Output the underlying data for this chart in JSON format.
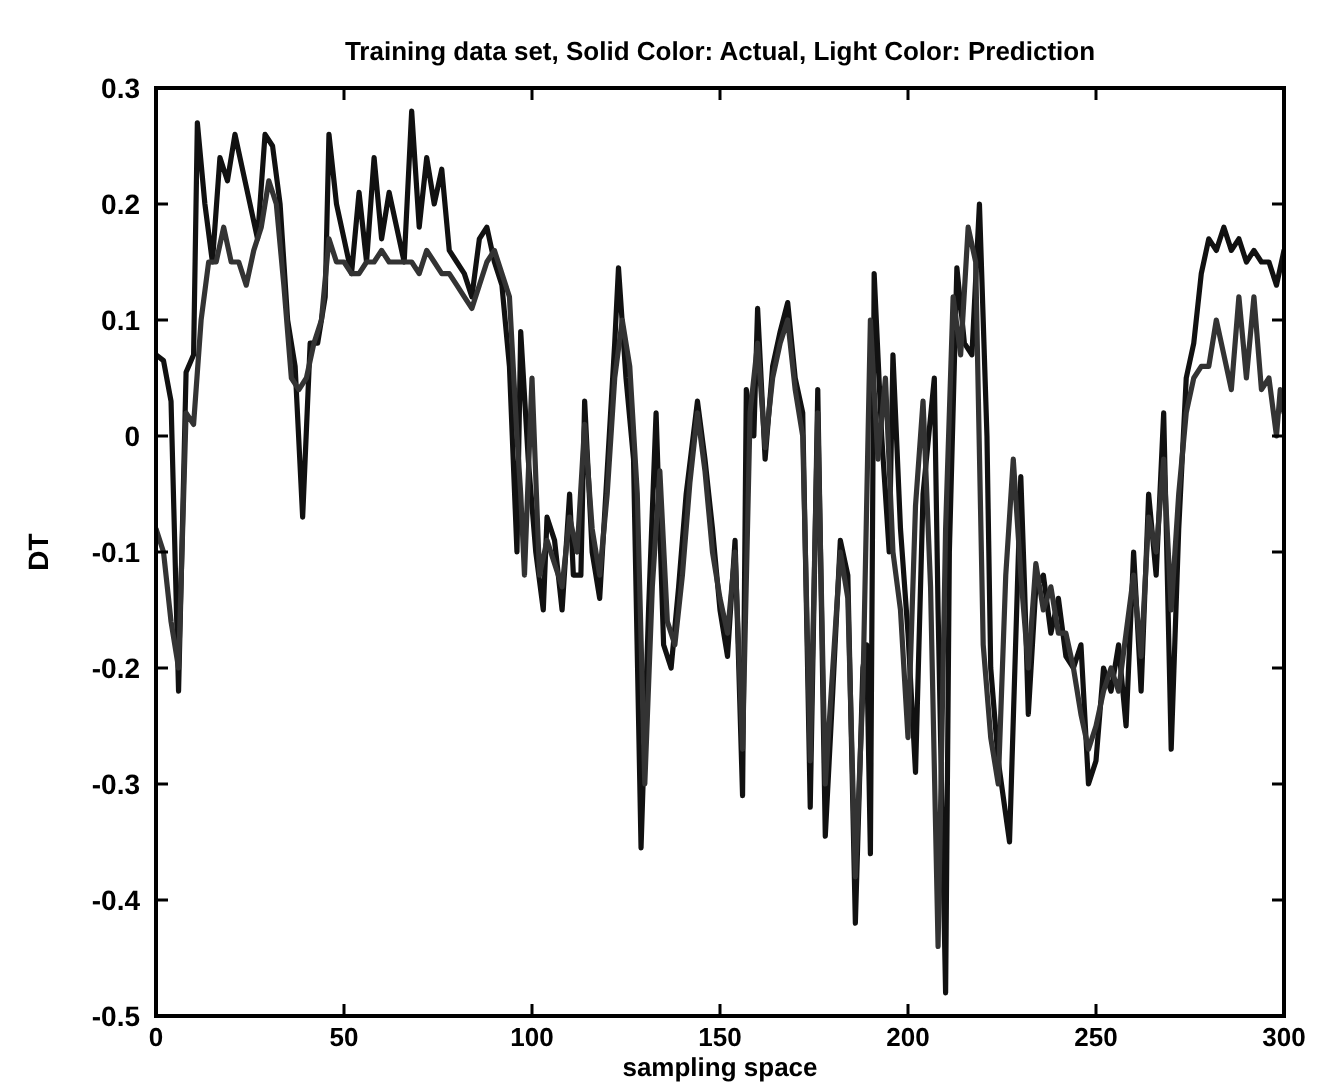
{
  "chart_data": {
    "type": "line",
    "title": "Training data set, Solid Color: Actual, Light Color: Prediction",
    "xlabel": "sampling space",
    "ylabel": "DT",
    "xlim": [
      0,
      300
    ],
    "xticks": [
      0,
      50,
      100,
      150,
      200,
      250,
      300
    ],
    "ylim": [
      -0.5,
      0.3
    ],
    "yticks": [
      -0.5,
      -0.4,
      -0.3,
      -0.2,
      -0.1,
      0,
      0.1,
      0.2,
      0.3
    ],
    "series": [
      {
        "color": "#111111",
        "x": [
          0,
          2,
          4,
          6,
          8,
          10,
          11,
          13,
          15,
          17,
          19,
          21,
          23,
          25,
          27,
          29,
          31,
          33,
          35,
          37,
          39,
          41,
          43,
          45,
          46,
          48,
          50,
          52,
          54,
          56,
          58,
          60,
          62,
          64,
          66,
          68,
          70,
          72,
          74,
          76,
          78,
          80,
          82,
          84,
          86,
          88,
          90,
          92,
          94,
          96,
          97,
          99,
          101,
          103,
          104,
          106,
          108,
          110,
          111,
          113,
          114,
          116,
          118,
          120,
          122,
          123,
          125,
          127,
          129,
          131,
          133,
          135,
          137,
          139,
          141,
          144,
          146,
          148,
          150,
          152,
          154,
          156,
          157,
          159,
          160,
          162,
          164,
          166,
          168,
          170,
          172,
          174,
          176,
          178,
          180,
          182,
          184,
          186,
          188,
          189,
          190,
          191,
          193,
          195,
          196,
          198,
          200,
          202,
          204,
          207,
          208,
          210,
          211,
          213,
          215,
          217,
          219,
          221,
          222,
          224,
          227,
          230,
          231,
          232,
          234,
          236,
          238,
          240,
          242,
          244,
          246,
          248,
          250,
          252,
          254,
          256,
          258,
          260,
          262,
          264,
          266,
          268,
          270,
          272,
          274,
          276,
          278,
          280,
          282,
          284,
          286,
          288,
          290,
          292,
          294,
          296,
          298,
          300
        ],
        "values": [
          0.07,
          0.065,
          0.03,
          -0.22,
          0.055,
          0.07,
          0.27,
          0.2,
          0.15,
          0.24,
          0.22,
          0.26,
          0.23,
          0.2,
          0.17,
          0.26,
          0.25,
          0.2,
          0.1,
          0.06,
          -0.07,
          0.08,
          0.08,
          0.12,
          0.26,
          0.2,
          0.17,
          0.14,
          0.21,
          0.15,
          0.24,
          0.17,
          0.21,
          0.18,
          0.15,
          0.28,
          0.18,
          0.24,
          0.2,
          0.23,
          0.16,
          0.15,
          0.14,
          0.12,
          0.17,
          0.18,
          0.15,
          0.13,
          0.06,
          -0.1,
          0.09,
          -0.02,
          -0.1,
          -0.15,
          -0.07,
          -0.09,
          -0.15,
          -0.05,
          -0.12,
          -0.12,
          0.03,
          -0.1,
          -0.14,
          -0.03,
          0.08,
          0.145,
          0.05,
          -0.02,
          -0.355,
          -0.15,
          0.02,
          -0.18,
          -0.2,
          -0.13,
          -0.05,
          0.03,
          -0.02,
          -0.08,
          -0.15,
          -0.19,
          -0.09,
          -0.31,
          0.04,
          0,
          0.11,
          -0.02,
          0.06,
          0.09,
          0.115,
          0.05,
          0.02,
          -0.32,
          0.04,
          -0.345,
          -0.22,
          -0.09,
          -0.12,
          -0.42,
          -0.2,
          -0.18,
          -0.36,
          0.14,
          0,
          -0.1,
          0.07,
          -0.08,
          -0.17,
          -0.29,
          -0.05,
          0.05,
          -0.15,
          -0.48,
          -0.1,
          0.145,
          0.08,
          0.07,
          0.2,
          0,
          -0.2,
          -0.28,
          -0.35,
          -0.035,
          -0.13,
          -0.24,
          -0.13,
          -0.12,
          -0.17,
          -0.14,
          -0.19,
          -0.2,
          -0.18,
          -0.3,
          -0.28,
          -0.2,
          -0.22,
          -0.18,
          -0.25,
          -0.1,
          -0.22,
          -0.05,
          -0.12,
          0.02,
          -0.27,
          -0.08,
          0.05,
          0.08,
          0.14,
          0.17,
          0.16,
          0.18,
          0.16,
          0.17,
          0.15,
          0.16,
          0.15,
          0.15,
          0.13,
          0.16
        ]
      },
      {
        "color": "#333333",
        "x": [
          0,
          2,
          4,
          6,
          8,
          10,
          12,
          14,
          16,
          18,
          20,
          22,
          24,
          26,
          28,
          30,
          32,
          34,
          36,
          38,
          40,
          42,
          44,
          46,
          48,
          50,
          52,
          54,
          56,
          58,
          60,
          62,
          64,
          66,
          68,
          70,
          72,
          74,
          76,
          78,
          80,
          82,
          84,
          86,
          88,
          90,
          92,
          94,
          96,
          97,
          98,
          100,
          102,
          104,
          106,
          108,
          110,
          112,
          114,
          116,
          118,
          120,
          122,
          124,
          126,
          128,
          130,
          132,
          134,
          136,
          138,
          140,
          142,
          144,
          146,
          148,
          150,
          152,
          154,
          156,
          158,
          160,
          162,
          164,
          166,
          168,
          170,
          172,
          174,
          176,
          178,
          180,
          182,
          184,
          186,
          188,
          190,
          192,
          194,
          196,
          198,
          200,
          202,
          204,
          206,
          208,
          210,
          212,
          214,
          216,
          218,
          220,
          222,
          224,
          226,
          228,
          230,
          232,
          234,
          236,
          238,
          240,
          242,
          244,
          246,
          248,
          250,
          252,
          254,
          256,
          258,
          260,
          262,
          264,
          266,
          268,
          270,
          272,
          274,
          276,
          278,
          280,
          282,
          284,
          286,
          288,
          290,
          292,
          294,
          296,
          298,
          299,
          300
        ],
        "values": [
          -0.08,
          -0.1,
          -0.16,
          -0.2,
          0.02,
          0.01,
          0.1,
          0.15,
          0.15,
          0.18,
          0.15,
          0.15,
          0.13,
          0.16,
          0.18,
          0.22,
          0.2,
          0.13,
          0.05,
          0.04,
          0.05,
          0.08,
          0.1,
          0.17,
          0.15,
          0.15,
          0.14,
          0.14,
          0.15,
          0.15,
          0.16,
          0.15,
          0.15,
          0.15,
          0.15,
          0.14,
          0.16,
          0.15,
          0.14,
          0.14,
          0.13,
          0.12,
          0.11,
          0.13,
          0.15,
          0.16,
          0.14,
          0.12,
          0,
          -0.05,
          -0.12,
          0.05,
          -0.12,
          -0.09,
          -0.11,
          -0.13,
          -0.07,
          -0.1,
          0.01,
          -0.08,
          -0.12,
          -0.05,
          0.05,
          0.1,
          0.06,
          -0.05,
          -0.3,
          -0.13,
          -0.03,
          -0.16,
          -0.18,
          -0.12,
          -0.04,
          0.02,
          -0.03,
          -0.1,
          -0.14,
          -0.17,
          -0.1,
          -0.27,
          0.02,
          0.08,
          -0.01,
          0.05,
          0.08,
          0.1,
          0.04,
          0.0,
          -0.28,
          0.02,
          -0.3,
          -0.2,
          -0.1,
          -0.14,
          -0.38,
          -0.22,
          0.1,
          -0.02,
          0.05,
          -0.1,
          -0.15,
          -0.26,
          -0.06,
          0.03,
          -0.13,
          -0.44,
          -0.08,
          0.12,
          0.07,
          0.18,
          0.15,
          -0.18,
          -0.26,
          -0.3,
          -0.12,
          -0.02,
          -0.12,
          -0.2,
          -0.11,
          -0.15,
          -0.13,
          -0.17,
          -0.17,
          -0.2,
          -0.24,
          -0.27,
          -0.25,
          -0.22,
          -0.2,
          -0.22,
          -0.17,
          -0.12,
          -0.19,
          -0.07,
          -0.1,
          -0.02,
          -0.15,
          -0.05,
          0.02,
          0.05,
          0.06,
          0.06,
          0.1,
          0.07,
          0.04,
          0.12,
          0.05,
          0.12,
          0.04,
          0.05,
          0,
          0.04,
          0.02
        ]
      }
    ]
  }
}
